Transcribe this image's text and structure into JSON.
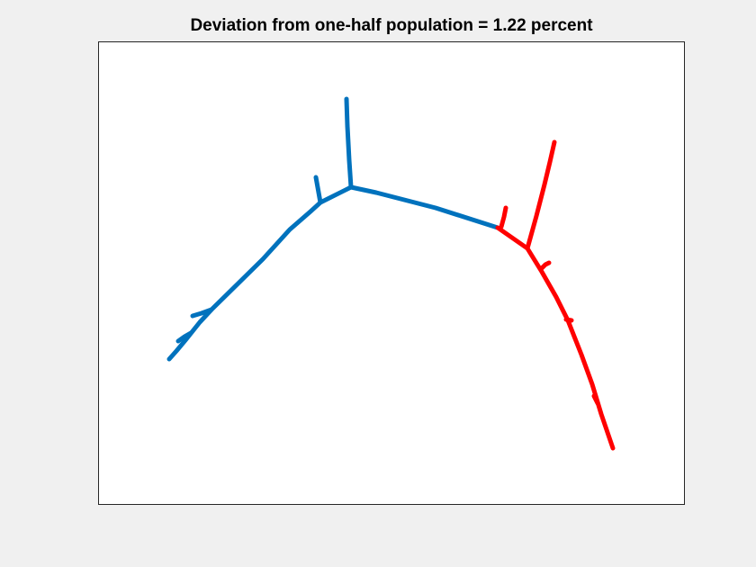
{
  "figure": {
    "title": "Deviation from one-half population = 1.22 percent",
    "background_color": "#f0f0f0",
    "axes_background_color": "#ffffff"
  },
  "chart_data": {
    "type": "line",
    "title": "Deviation from one-half population = 1.22 percent",
    "grid": false,
    "axes_visible": false,
    "series": [
      {
        "color": "#0072bd",
        "branches": [
          "main-blue",
          "blue-upper-spur",
          "blue-left-spur",
          "blue-lower-spur-1",
          "blue-lower-spur-2"
        ]
      },
      {
        "color": "#ff0000",
        "branches": [
          "red-upper-branch",
          "red-lower-branch",
          "red-left-spur",
          "red-small-spur",
          "red-junction-link"
        ]
      }
    ]
  }
}
